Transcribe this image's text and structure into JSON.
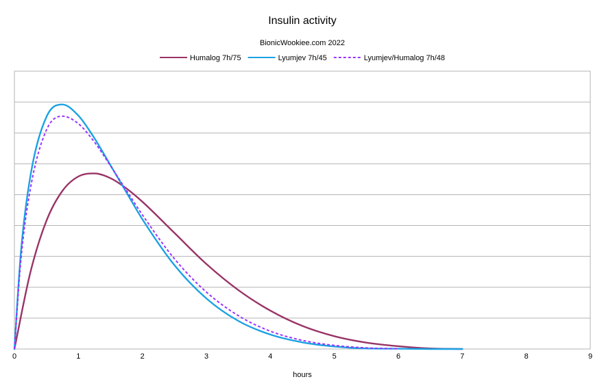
{
  "chart_data": {
    "type": "line",
    "title": "Insulin activity",
    "subtitle": "BionicWookiee.com 2022",
    "xlabel": "hours",
    "ylabel": "",
    "xlim": [
      0,
      9
    ],
    "x_ticks": [
      "0",
      "1",
      "2",
      "3",
      "4",
      "5",
      "6",
      "7",
      "8",
      "9"
    ],
    "ylim": [
      0,
      1
    ],
    "y_gridlines": 9,
    "y_tick_labels_visible": false,
    "grid": true,
    "legend_position": "top",
    "series": [
      {
        "name": "Humalog 7h/75",
        "color": "#993366",
        "style": "solid",
        "x": [
          0,
          0.25,
          0.5,
          0.75,
          1.0,
          1.25,
          1.5,
          1.75,
          2.0,
          2.5,
          3.0,
          3.5,
          4.0,
          4.5,
          5.0,
          5.5,
          6.0,
          6.5,
          7.0
        ],
        "y": [
          0,
          0.276,
          0.461,
          0.569,
          0.621,
          0.632,
          0.615,
          0.578,
          0.53,
          0.418,
          0.306,
          0.212,
          0.138,
          0.083,
          0.046,
          0.023,
          0.01,
          0.002,
          0
        ]
      },
      {
        "name": "Lyumjev 7h/45",
        "color": "#1ba1e2",
        "style": "solid",
        "x": [
          0,
          0.1,
          0.25,
          0.5,
          0.75,
          1.0,
          1.25,
          1.5,
          1.75,
          2.0,
          2.5,
          3.0,
          3.5,
          4.0,
          4.5,
          5.0,
          5.5,
          6.0,
          6.5,
          7.0
        ],
        "y": [
          0,
          0.344,
          0.622,
          0.835,
          0.88,
          0.84,
          0.759,
          0.662,
          0.564,
          0.467,
          0.302,
          0.182,
          0.101,
          0.052,
          0.024,
          0.009,
          0.002,
          0.001,
          0,
          0
        ]
      },
      {
        "name": "Lyumjev/Humalog 7h/48",
        "color": "#9933ff",
        "style": "dashed",
        "x": [
          0,
          0.1,
          0.25,
          0.5,
          0.75,
          1.0,
          1.25,
          1.5,
          1.75,
          2.0,
          2.5,
          3.0,
          3.5,
          4.0,
          4.5,
          5.0,
          5.5,
          6.0
        ],
        "y": [
          0,
          0.317,
          0.577,
          0.788,
          0.838,
          0.811,
          0.745,
          0.66,
          0.571,
          0.483,
          0.325,
          0.205,
          0.12,
          0.064,
          0.031,
          0.013,
          0.004,
          0.001
        ]
      }
    ]
  }
}
